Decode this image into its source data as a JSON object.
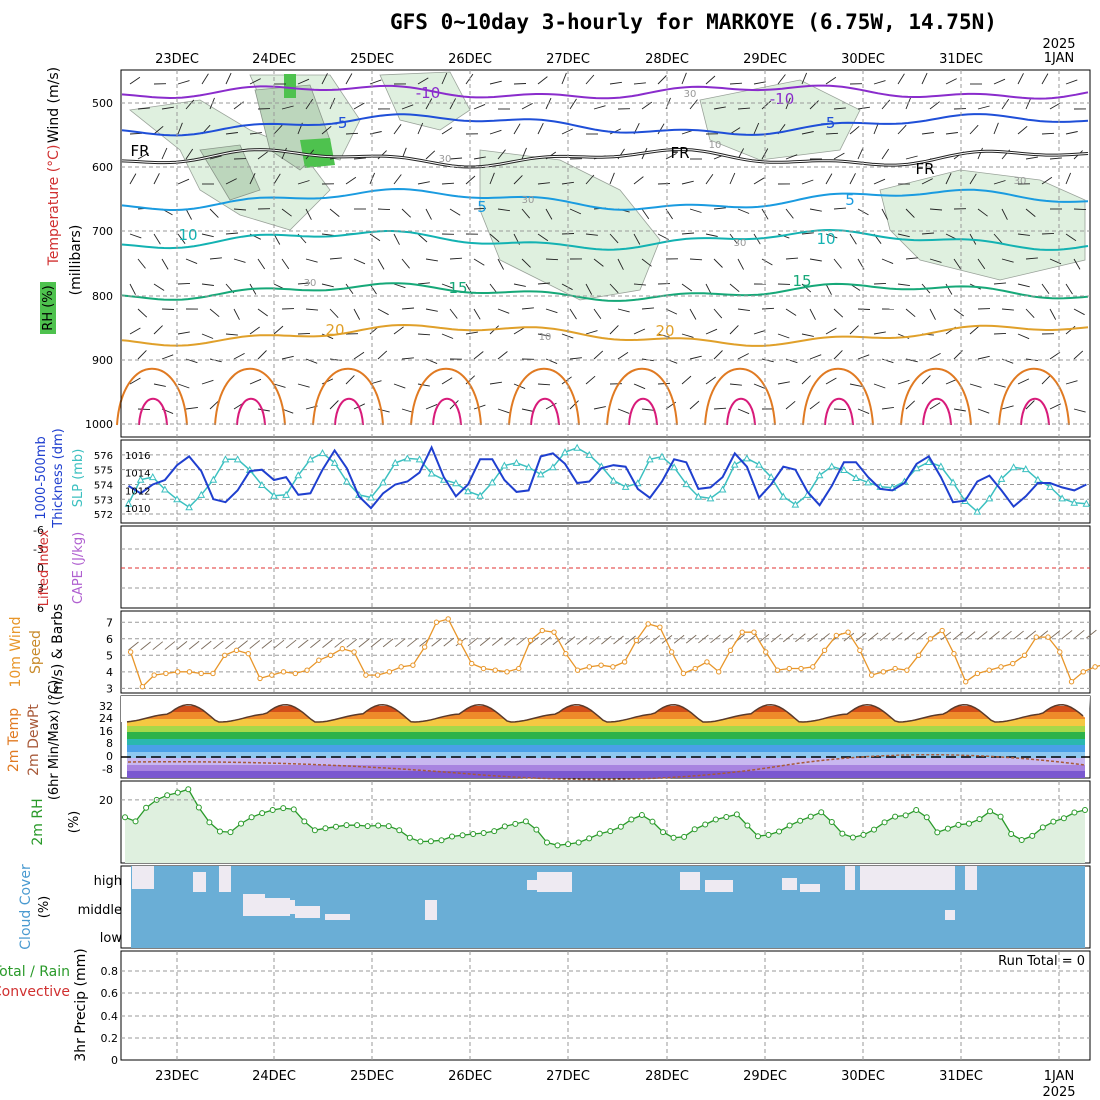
{
  "title": "GFS 0~10day 3-hourly for MARKOYE (6.75W, 14.75N)",
  "colors": {
    "grid": "#9a9a9a",
    "panel_border": "#000000",
    "rh_green": "#4ec24e",
    "rh_light": "#dff0df",
    "thickness_line": "#1f3fcf",
    "slp_line": "#3cc0c0",
    "wind_speed_line": "#e8962a",
    "rh2m_line": "#2a9a2a",
    "cloud_blue": "#6aaed6",
    "cloud_white": "#eeeaf2",
    "lifted_zero": "#e03030"
  },
  "top_axis": {
    "date_labels": [
      "23DEC",
      "24DEC",
      "25DEC",
      "26DEC",
      "27DEC",
      "28DEC",
      "29DEC",
      "30DEC",
      "31DEC",
      "1JAN"
    ],
    "year_label": "2025"
  },
  "bottom_axis": {
    "date_labels": [
      "23DEC",
      "24DEC",
      "25DEC",
      "26DEC",
      "27DEC",
      "28DEC",
      "29DEC",
      "30DEC",
      "31DEC",
      "1JAN"
    ],
    "year_label": "2025"
  },
  "panels": {
    "upper_air": {
      "label_wind": "Wind (m/s)",
      "label_temp": "Temperature (°C)",
      "label_pressure": "(millibars)",
      "label_rh": "RH (%)",
      "y_ticks": [
        "500",
        "600",
        "700",
        "800",
        "900",
        "1000"
      ],
      "temp_labels": [
        "-10",
        "-10",
        "-5",
        "-5",
        "FR",
        "FR",
        "FR",
        "5",
        "5",
        "10",
        "10",
        "15",
        "15",
        "20",
        "20"
      ],
      "rh_labels": [
        "30",
        "10",
        "30",
        "30",
        "30",
        "30",
        "10",
        "30"
      ]
    },
    "thickness": {
      "label_left": "1000-500mb",
      "label_left2": "Thickness (dm)",
      "label_right": "SLP (mb)",
      "y_ticks_thickness": [
        "576",
        "575",
        "574",
        "573",
        "572"
      ],
      "y_ticks_slp": [
        "1016",
        "1014",
        "1012",
        "1010"
      ]
    },
    "stability": {
      "label_lifted": "Lifted Index",
      "label_cape": "CAPE (J/kg)",
      "y_ticks": [
        "-6",
        "-3",
        "0",
        "3",
        "6"
      ]
    },
    "wind10m": {
      "label_a": "10m Wind",
      "label_b": "Speed",
      "label_c": "(m/s) & Barbs",
      "y_ticks": [
        "7",
        "6",
        "5",
        "4",
        "3"
      ]
    },
    "temp2m": {
      "label_a": "2m Temp",
      "label_b": "2m DewPt",
      "label_c": "(6hr Min/Max) (°C)",
      "y_ticks": [
        "32",
        "24",
        "16",
        "8",
        "0",
        "-8"
      ]
    },
    "rh2m": {
      "label_a": "2m RH",
      "label_b": "(%)",
      "y_ticks": [
        "20"
      ]
    },
    "cloud": {
      "label_a": "Cloud Cover",
      "label_b": "(%)",
      "levels": [
        "high",
        "middle",
        "low"
      ]
    },
    "precip": {
      "label_a": "Total / Rain",
      "label_b": "Convective",
      "label_c": "3hr Precip (mm)",
      "y_ticks": [
        "0.8",
        "0.6",
        "0.4",
        "0.2",
        "0"
      ],
      "run_total": "Run Total = 0"
    }
  },
  "chart_data": [
    {
      "type": "line",
      "title": "1000-500mb Thickness (dm) & SLP (mb)",
      "x": "3-hourly steps from 22DEC 12Z to 1JAN 06Z",
      "ylim_thickness": [
        571.8,
        576.6
      ],
      "ylim_slp": [
        1009,
        1017
      ],
      "series": [
        {
          "name": "Thickness (dm)",
          "values": [
            573.9,
            573.4,
            574.0,
            574.3,
            575.3,
            575.9,
            574.9,
            573.0,
            572.8,
            573.6,
            574.9,
            575.0,
            574.3,
            574.5,
            573.3,
            573.4,
            575.0,
            576.3,
            575.1,
            573.2,
            572.4,
            573.4,
            574.0,
            574.2,
            574.8,
            576.5,
            574.5,
            573.2,
            574.0,
            575.7,
            575.7,
            574.3,
            573.5,
            573.6,
            575.9,
            576.1,
            575.4,
            574.1,
            574.2,
            575.1,
            575.3,
            575.2,
            573.7,
            573.1,
            574.2,
            575.7,
            575.5,
            573.7,
            573.8,
            574.5,
            576.1,
            575.2,
            573.1,
            574.0,
            575.2,
            575.0,
            573.5,
            572.6,
            573.9,
            575.5,
            575.5,
            574.5,
            573.7,
            573.6,
            574.1,
            575.4,
            575.9,
            574.5,
            572.8,
            572.9,
            574.2,
            574.6,
            573.6,
            572.5,
            573.2,
            574.1,
            574.1,
            573.8,
            573.6,
            574.0
          ]
        },
        {
          "name": "SLP (mb)",
          "values": [
            1010.5,
            1013.2,
            1013.5,
            1012.1,
            1011.0,
            1010.1,
            1011.5,
            1013.2,
            1015.5,
            1015.5,
            1014.3,
            1012.6,
            1011.4,
            1011.5,
            1013.7,
            1015.5,
            1016.2,
            1015.1,
            1013.0,
            1011.5,
            1011.2,
            1012.9,
            1015.1,
            1015.6,
            1015.5,
            1013.9,
            1013.2,
            1012.8,
            1011.9,
            1011.4,
            1012.9,
            1014.8,
            1015.1,
            1014.6,
            1013.8,
            1014.6,
            1016.3,
            1016.8,
            1016.0,
            1014.7,
            1013.1,
            1012.4,
            1012.8,
            1015.5,
            1015.8,
            1014.6,
            1012.7,
            1011.3,
            1011.1,
            1012.1,
            1014.9,
            1015.6,
            1014.9,
            1013.5,
            1011.3,
            1010.4,
            1011.5,
            1013.7,
            1014.7,
            1014.3,
            1013.4,
            1012.9,
            1012.4,
            1012.3,
            1013.0,
            1014.5,
            1015.2,
            1014.7,
            1012.9,
            1010.8,
            1009.6,
            1011.1,
            1013.3,
            1014.6,
            1014.4,
            1013.2,
            1012.4,
            1011.1,
            1010.6,
            1010.5
          ]
        }
      ]
    },
    {
      "type": "line",
      "title": "10m Wind Speed (m/s)",
      "ylim": [
        2.9,
        7.5
      ],
      "series": [
        {
          "name": "Wind Speed (m/s)",
          "values": [
            5.2,
            3.1,
            3.8,
            3.9,
            4.0,
            4.0,
            3.9,
            3.9,
            5.0,
            5.3,
            5.1,
            3.6,
            3.8,
            4.0,
            3.9,
            4.1,
            4.7,
            5.0,
            5.4,
            5.2,
            3.8,
            3.8,
            4.0,
            4.3,
            4.4,
            5.5,
            7.0,
            7.2,
            5.8,
            4.5,
            4.2,
            4.1,
            4.0,
            4.2,
            5.9,
            6.5,
            6.4,
            5.1,
            4.1,
            4.3,
            4.4,
            4.3,
            4.6,
            5.9,
            6.9,
            6.7,
            5.2,
            3.9,
            4.2,
            4.6,
            4.0,
            5.3,
            6.4,
            6.4,
            5.2,
            4.1,
            4.2,
            4.2,
            4.3,
            5.3,
            6.2,
            6.4,
            5.3,
            3.8,
            4.0,
            4.2,
            4.1,
            5.0,
            6.0,
            6.5,
            5.1,
            3.4,
            3.9,
            4.1,
            4.3,
            4.5,
            5.0,
            6.1,
            6.1,
            5.2,
            3.4,
            4.0,
            4.3,
            4.5,
            5.1
          ]
        }
      ]
    },
    {
      "type": "line",
      "title": "2m RH (%)",
      "ylim": [
        0,
        26
      ],
      "series": [
        {
          "name": "2m RH (%)",
          "values": [
            14.5,
            13.2,
            17.5,
            20.0,
            21.5,
            22.3,
            23.4,
            17.6,
            12.9,
            10.0,
            9.8,
            12.5,
            14.5,
            15.8,
            16.8,
            17.4,
            17.0,
            13.2,
            10.4,
            11.0,
            11.5,
            12.0,
            12.0,
            11.7,
            11.9,
            11.7,
            10.4,
            8.0,
            6.8,
            6.9,
            7.2,
            8.4,
            8.8,
            9.2,
            9.5,
            10.1,
            11.6,
            12.4,
            13.2,
            10.6,
            6.5,
            5.6,
            6.0,
            6.5,
            7.8,
            9.3,
            10.1,
            11.5,
            13.8,
            15.2,
            13.1,
            9.8,
            8.0,
            8.3,
            10.7,
            12.2,
            13.8,
            14.6,
            15.4,
            11.9,
            8.5,
            8.9,
            10.0,
            11.9,
            13.4,
            14.7,
            16.1,
            13.0,
            9.3,
            8.1,
            8.9,
            10.6,
            12.9,
            14.7,
            15.1,
            16.8,
            14.5,
            9.7,
            10.9,
            12.1,
            12.5,
            13.9,
            16.4,
            14.7,
            9.2,
            7.3,
            8.6,
            11.3,
            13.1,
            14.2,
            16.0,
            16.8
          ]
        }
      ]
    }
  ]
}
